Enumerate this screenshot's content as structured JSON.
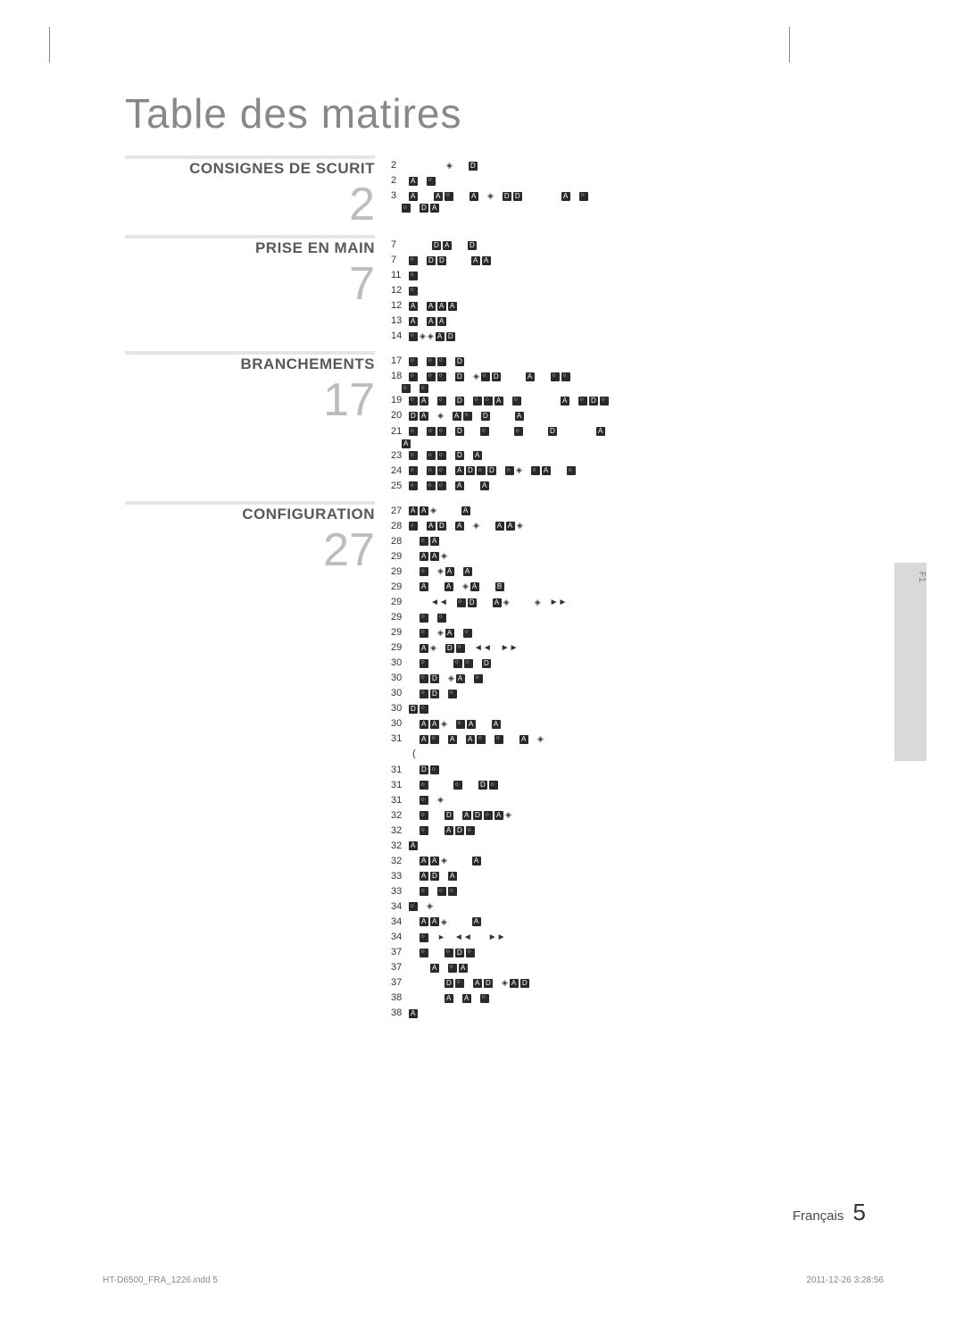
{
  "title": "Table des matires",
  "sections": [
    {
      "title": "CONSIGNES DE SCURIT",
      "number": "2"
    },
    {
      "title": "PRISE EN MAIN",
      "number": "7"
    },
    {
      "title": "BRANCHEMENTS",
      "number": "17"
    },
    {
      "title": "CONFIGURATION",
      "number": "27"
    }
  ],
  "side_tab": "F1",
  "page_label": "Français",
  "page_number": "5",
  "doc_file": "HT-D6500_FRA_1226.indd   5",
  "doc_timestamp": "2011-12-26    3:28:56",
  "glyph_colors": {
    "box": "#2a2a2a",
    "text": "#333333"
  }
}
